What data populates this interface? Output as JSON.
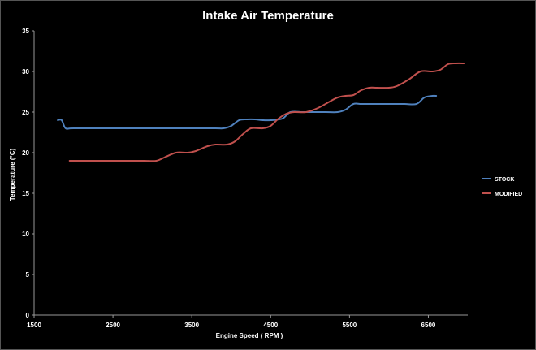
{
  "chart_data": {
    "type": "line",
    "title": "Intake Air Temperature",
    "xlabel": "Engine Speed ( RPM )",
    "ylabel": "Temperature (°C)",
    "xlim": [
      1500,
      7000
    ],
    "ylim": [
      0,
      35
    ],
    "x_ticks": [
      1500,
      2500,
      3500,
      4500,
      5500,
      6500
    ],
    "y_ticks": [
      0,
      5,
      10,
      15,
      20,
      25,
      30,
      35
    ],
    "grid": false,
    "legend_position": "right",
    "series": [
      {
        "name": "STOCK",
        "color": "#4f81bd",
        "points": [
          [
            1800,
            24
          ],
          [
            1850,
            24
          ],
          [
            1900,
            23
          ],
          [
            2000,
            23
          ],
          [
            2500,
            23
          ],
          [
            3000,
            23
          ],
          [
            3500,
            23
          ],
          [
            3800,
            23
          ],
          [
            3900,
            23
          ],
          [
            4000,
            23.3
          ],
          [
            4100,
            24
          ],
          [
            4200,
            24.1
          ],
          [
            4300,
            24.1
          ],
          [
            4400,
            24
          ],
          [
            4500,
            24
          ],
          [
            4650,
            24.2
          ],
          [
            4750,
            25
          ],
          [
            4900,
            25
          ],
          [
            5000,
            25
          ],
          [
            5200,
            25
          ],
          [
            5350,
            25
          ],
          [
            5450,
            25.3
          ],
          [
            5550,
            26
          ],
          [
            5650,
            26
          ],
          [
            5800,
            26
          ],
          [
            6000,
            26
          ],
          [
            6200,
            26
          ],
          [
            6350,
            26
          ],
          [
            6450,
            26.8
          ],
          [
            6550,
            27
          ],
          [
            6600,
            27
          ]
        ]
      },
      {
        "name": "MODIFIED",
        "color": "#c0504d",
        "points": [
          [
            1950,
            19
          ],
          [
            2200,
            19
          ],
          [
            2500,
            19
          ],
          [
            2750,
            19
          ],
          [
            2900,
            19
          ],
          [
            3050,
            19
          ],
          [
            3150,
            19.4
          ],
          [
            3300,
            20
          ],
          [
            3450,
            20
          ],
          [
            3550,
            20.2
          ],
          [
            3700,
            20.8
          ],
          [
            3800,
            21
          ],
          [
            3950,
            21
          ],
          [
            4050,
            21.4
          ],
          [
            4150,
            22.3
          ],
          [
            4250,
            23
          ],
          [
            4400,
            23
          ],
          [
            4500,
            23.3
          ],
          [
            4600,
            24.2
          ],
          [
            4700,
            24.8
          ],
          [
            4800,
            25
          ],
          [
            4950,
            25
          ],
          [
            5100,
            25.5
          ],
          [
            5250,
            26.3
          ],
          [
            5350,
            26.8
          ],
          [
            5450,
            27
          ],
          [
            5550,
            27.1
          ],
          [
            5650,
            27.7
          ],
          [
            5750,
            28
          ],
          [
            5850,
            28
          ],
          [
            6000,
            28
          ],
          [
            6100,
            28.2
          ],
          [
            6250,
            29
          ],
          [
            6400,
            30
          ],
          [
            6550,
            30
          ],
          [
            6650,
            30.2
          ],
          [
            6750,
            30.9
          ],
          [
            6850,
            31
          ],
          [
            6950,
            31
          ]
        ]
      }
    ]
  }
}
